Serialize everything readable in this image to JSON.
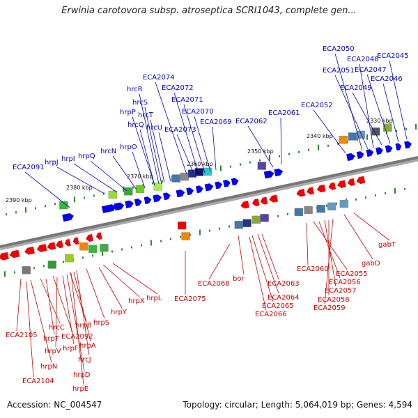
{
  "title": "Erwinia carotovora subsp. atroseptica SCRI1043, complete gen...",
  "footer": {
    "accession": "Accession: NC_004547",
    "topology": "Topology: circular; Length: 5,064,019 bp; Genes: 4,594"
  },
  "colors": {
    "forward_label": "#0000cc",
    "reverse_label": "#cc0000",
    "forward_arrow": "#0000ee",
    "reverse_arrow": "#ee0000",
    "backbone": "#777777",
    "tick": "#2a8a2a"
  },
  "ruler": [
    "2390 kbp",
    "2380 kbp",
    "2370 kbp",
    "2360 kbp",
    "2350 kbp",
    "2340 kbp",
    "2330 kbp"
  ],
  "forward_labels": [
    "ECA2091",
    "hrpJ",
    "hrpI",
    "hrpQ",
    "hrcN",
    "hrpO",
    "hrcQ",
    "hrpP",
    "hrcS",
    "hrcT",
    "hrcR",
    "hrcU",
    "ECA2074",
    "ECA2073",
    "ECA2072",
    "ECA2071",
    "ECA2070",
    "ECA2069",
    "ECA2062",
    "ECA2061",
    "ECA2052",
    "ECA2050",
    "ECA2051",
    "ECA2048",
    "ECA2049",
    "ECA2047",
    "ECA2046",
    "ECA2045"
  ],
  "reverse_labels": [
    "ECA2105",
    "hrcC",
    "hrpT",
    "ECA2092",
    "hrpV",
    "hrpF",
    "hrpB",
    "hrpA",
    "hrpN",
    "hrcJ",
    "hrpS",
    "hrpD",
    "ECA2104",
    "hrpE",
    "hrpY",
    "hrpX",
    "hrpL",
    "ECA2075",
    "ECA2068",
    "bor",
    "ECA2064",
    "ECA2063",
    "ECA2065",
    "ECA2066",
    "ECA2060",
    "ECA2055",
    "ECA2056",
    "ECA2057",
    "ECA2058",
    "ECA2059",
    "gabD",
    "gabT"
  ]
}
